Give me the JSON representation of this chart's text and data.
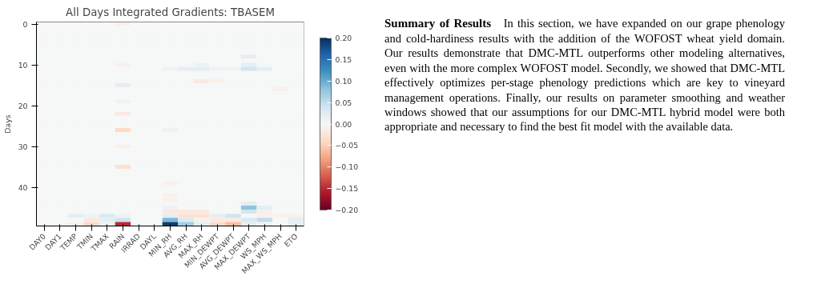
{
  "chart_data": {
    "type": "heatmap",
    "title": "All Days Integrated Gradients: TBASEM",
    "ylabel": "Days",
    "categories": [
      "DAY0",
      "DAY1",
      "TEMP",
      "TMIN",
      "TMAX",
      "RAIN",
      "IRRAD",
      "DAYL",
      "MIN_RH",
      "AVG_RH",
      "MAX_RH",
      "MIN_DEWPT",
      "AVG_DEWPT",
      "MAX_DEWPT",
      "WS_MPH",
      "MAX_WS_MPH",
      "ETO"
    ],
    "ylim": [
      49.5,
      -0.5
    ],
    "yticks": [
      0,
      10,
      20,
      30,
      40
    ],
    "clim": [
      -0.2,
      0.2
    ],
    "cticks": [
      {
        "value": -0.2,
        "label": "−0.20"
      },
      {
        "value": -0.15,
        "label": "−0.15"
      },
      {
        "value": -0.1,
        "label": "−0.10"
      },
      {
        "value": -0.05,
        "label": "−0.05"
      },
      {
        "value": 0,
        "label": "0.00"
      },
      {
        "value": 0.05,
        "label": "0.05"
      },
      {
        "value": 0.1,
        "label": "0.10"
      },
      {
        "value": 0.15,
        "label": "0.15"
      },
      {
        "value": 0.2,
        "label": "0.20"
      }
    ],
    "cells": [
      [
        0,
        0,
        0,
        0,
        0,
        -0.01,
        0,
        0,
        0,
        0,
        0,
        0,
        0,
        0,
        0,
        0,
        0
      ],
      [
        0,
        0,
        0,
        0,
        0,
        0,
        0,
        0,
        0,
        0,
        0,
        0,
        0,
        0,
        0,
        0,
        0
      ],
      [
        0,
        0,
        0,
        0,
        0,
        0,
        0,
        0,
        0,
        0,
        0,
        0,
        0,
        0,
        0,
        0,
        0
      ],
      [
        0,
        0,
        0,
        0,
        0,
        0,
        0,
        0,
        0,
        0,
        0,
        0,
        0,
        0,
        0,
        0,
        0
      ],
      [
        0,
        0,
        0,
        0,
        0,
        0,
        0,
        0,
        0,
        0,
        0,
        0,
        0,
        0,
        0,
        0,
        0
      ],
      [
        0,
        0,
        0,
        0,
        0,
        0,
        0,
        0,
        0,
        0,
        0,
        0,
        0,
        0,
        0,
        0,
        0
      ],
      [
        0,
        0,
        0,
        0,
        0,
        0,
        0,
        0,
        0,
        0,
        0,
        0,
        0,
        0,
        0,
        0,
        0
      ],
      [
        0,
        0,
        0,
        0,
        0,
        0,
        0,
        0,
        0,
        0,
        0,
        0,
        0,
        0,
        0,
        0,
        0
      ],
      [
        0,
        0,
        0,
        0,
        0,
        0,
        0,
        0,
        0,
        0,
        0,
        0,
        0,
        0.02,
        0,
        0,
        0
      ],
      [
        0,
        0,
        0,
        0,
        0,
        0,
        0,
        0,
        0,
        0,
        0,
        0,
        0,
        0,
        0,
        0,
        0
      ],
      [
        0,
        0,
        0,
        0,
        0,
        -0.01,
        0,
        0,
        0,
        0,
        0.01,
        0,
        0,
        0.02,
        0,
        0,
        0
      ],
      [
        0,
        0,
        0,
        0,
        0,
        0,
        0,
        0,
        0.01,
        0.02,
        0.02,
        0.01,
        0.01,
        0.04,
        0.02,
        0,
        0
      ],
      [
        0,
        0,
        0,
        0,
        0,
        0,
        0,
        0,
        0,
        0,
        0,
        0,
        0,
        0,
        0,
        0,
        0
      ],
      [
        0,
        0,
        0,
        0,
        0,
        0,
        0,
        0,
        0,
        0,
        0,
        0,
        0,
        0,
        0,
        0,
        0
      ],
      [
        0,
        0,
        0,
        0,
        0,
        0,
        0,
        0,
        0,
        0,
        -0.02,
        -0.01,
        0,
        0,
        0,
        0,
        0
      ],
      [
        0,
        0,
        0,
        0,
        0,
        0.02,
        0,
        0,
        0,
        0,
        0,
        0,
        0,
        0,
        0,
        0,
        0
      ],
      [
        0,
        0,
        0,
        0,
        0,
        0,
        0,
        0,
        0,
        0,
        0,
        0,
        0,
        0,
        0,
        -0.01,
        0
      ],
      [
        0,
        0,
        0,
        0,
        0,
        0,
        0,
        0,
        0,
        0,
        0,
        0,
        0,
        0,
        0,
        0,
        0
      ],
      [
        0,
        0,
        0,
        0,
        0,
        0,
        0,
        0,
        0,
        0,
        0,
        0,
        0,
        0,
        0,
        0,
        0
      ],
      [
        0,
        0,
        0,
        0,
        0,
        0.01,
        0,
        0,
        0,
        0,
        0,
        0,
        0,
        0,
        0,
        0,
        0
      ],
      [
        0,
        0,
        0,
        0,
        0,
        0,
        0,
        0,
        0,
        0,
        0,
        0,
        0,
        0,
        0,
        0,
        0
      ],
      [
        0,
        0,
        0,
        0,
        0,
        0,
        0,
        0,
        0,
        0,
        0,
        0,
        0,
        0,
        0,
        0,
        0
      ],
      [
        0,
        0,
        0,
        0,
        0,
        -0.02,
        0,
        0,
        0,
        0,
        0,
        0,
        0,
        0,
        0,
        0,
        0
      ],
      [
        0,
        0,
        0,
        0,
        0,
        0,
        0,
        0,
        0,
        0,
        0,
        0,
        0,
        0,
        0,
        0,
        0
      ],
      [
        0,
        0,
        0,
        0,
        0,
        0,
        0,
        0,
        0,
        0,
        0,
        0,
        0,
        0,
        0,
        0,
        0
      ],
      [
        0,
        0,
        0,
        0,
        0,
        0,
        0,
        0,
        0,
        0,
        0,
        0,
        0,
        0,
        0,
        0,
        0
      ],
      [
        0,
        0,
        0,
        0,
        0,
        -0.04,
        0,
        0,
        0.01,
        0,
        0,
        0,
        0,
        0,
        0,
        0,
        0
      ],
      [
        0,
        0,
        0,
        0,
        0,
        0,
        0,
        0,
        0,
        0,
        0,
        0,
        0,
        0,
        0,
        0,
        0
      ],
      [
        0,
        0,
        0,
        0,
        0,
        0,
        0,
        0,
        0,
        0,
        0,
        0,
        0,
        0,
        0,
        0,
        0
      ],
      [
        0,
        0,
        0,
        0,
        0,
        0,
        0,
        0,
        0,
        0,
        0,
        0,
        0,
        0,
        0,
        0,
        0
      ],
      [
        0,
        0,
        0,
        0,
        0,
        -0.01,
        0,
        0,
        0,
        0,
        0,
        0,
        0,
        0,
        0,
        0,
        0
      ],
      [
        0,
        0,
        0,
        0,
        0,
        0,
        0,
        0,
        0,
        0,
        0,
        0,
        0,
        0,
        0,
        0,
        0
      ],
      [
        0,
        0,
        0,
        0,
        0,
        0,
        0,
        0,
        0,
        0,
        0,
        0,
        0,
        0,
        0,
        0,
        0
      ],
      [
        0,
        0,
        0,
        0,
        0,
        0,
        0,
        0,
        0,
        0,
        0,
        0,
        0,
        0,
        0,
        0,
        0
      ],
      [
        0,
        0,
        0,
        0,
        0,
        0,
        0,
        0,
        0,
        0,
        0,
        0,
        0,
        0,
        0,
        0,
        0
      ],
      [
        0,
        0,
        0,
        0,
        0,
        -0.03,
        0,
        0,
        0,
        0,
        0,
        0,
        0,
        0,
        0,
        0,
        0
      ],
      [
        0,
        0,
        0,
        0,
        0,
        0,
        0,
        0,
        0,
        0,
        0,
        0,
        0,
        0,
        0,
        0,
        0
      ],
      [
        0,
        0,
        0,
        0,
        0,
        0,
        0,
        0,
        0,
        0,
        0,
        0,
        0,
        0,
        0,
        0,
        0
      ],
      [
        0,
        0,
        0,
        0,
        0,
        0,
        0,
        0,
        0,
        0,
        0,
        0,
        0,
        0,
        0,
        0,
        0
      ],
      [
        0,
        0,
        0,
        0,
        0,
        0,
        0,
        0,
        -0.01,
        0,
        0,
        0,
        0,
        0,
        0,
        0,
        0
      ],
      [
        0,
        0,
        0,
        0,
        0,
        0,
        0,
        0,
        0,
        0,
        0,
        0,
        0,
        0,
        0,
        0,
        0
      ],
      [
        0,
        0,
        0,
        0,
        0,
        0,
        0,
        0,
        0,
        0,
        0,
        0,
        0,
        0,
        0,
        0,
        0
      ],
      [
        0,
        0,
        0,
        0,
        0,
        0,
        0,
        0,
        -0.01,
        0,
        0,
        0,
        0,
        0,
        0,
        0,
        0
      ],
      [
        0,
        0,
        0,
        0,
        0,
        0,
        0,
        0,
        -0.01,
        0,
        0,
        0,
        0,
        0,
        0,
        0,
        0
      ],
      [
        0,
        0,
        0,
        0,
        0,
        0,
        0,
        0,
        0,
        0,
        0,
        0,
        0,
        0.02,
        0,
        0,
        0
      ],
      [
        0,
        0,
        0,
        0,
        0,
        0,
        0,
        0,
        0.01,
        0,
        0,
        0,
        0,
        0.08,
        0.02,
        0,
        0
      ],
      [
        0,
        0,
        0,
        0,
        0,
        0,
        0,
        0,
        -0.02,
        -0.02,
        -0.02,
        0,
        0,
        0.04,
        -0.01,
        0,
        0
      ],
      [
        0,
        0,
        0.02,
        0.01,
        0.03,
        0.01,
        0,
        0,
        0.02,
        -0.03,
        -0.03,
        0.02,
        0.04,
        0,
        -0.01,
        -0.01,
        -0.01
      ],
      [
        0,
        0,
        0,
        -0.02,
        0.02,
        0.04,
        0,
        0,
        0.09,
        0.03,
        -0.01,
        -0.02,
        -0.02,
        0.03,
        0.05,
        0,
        0.02
      ],
      [
        0,
        0,
        -0.01,
        -0.04,
        0.01,
        -0.15,
        0,
        0,
        0.19,
        0.07,
        0.02,
        -0.04,
        -0.06,
        0.02,
        0.01,
        0,
        0.02
      ]
    ],
    "annotations": [
      "Summary of Results",
      "In this section, we have expanded on our grape phenology and cold-hardiness results with the addition of the WOFOST wheat yield domain. Our results demonstrate that DMC-MTL outperforms other modeling alternatives, even with the more complex WOFOST model. Secondly, we showed that DMC-MTL effectively optimizes per-stage phenology predictions which are key to vineyard management operations. Finally, our results on parameter smoothing and weather windows showed that our assumptions for our DMC-MTL hybrid model were both appropriate and necessary to find the best fit model with the available data."
    ]
  }
}
